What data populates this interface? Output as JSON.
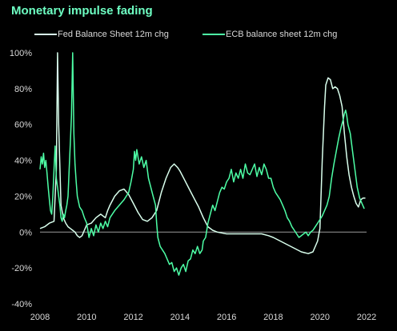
{
  "title": "Monetary impulse fading",
  "colors": {
    "background": "#000000",
    "title": "#6effc3",
    "fed": "#d9ffed",
    "ecb": "#4dffa6",
    "axis": "#9a9a9a",
    "text": "#d9d9d9"
  },
  "chart_data": {
    "type": "line",
    "title": "Monetary impulse fading",
    "xlabel": "",
    "ylabel": "",
    "xlim": [
      2008,
      2022
    ],
    "ylim": [
      -40,
      100
    ],
    "x_ticks": [
      2008,
      2010,
      2012,
      2014,
      2016,
      2018,
      2020,
      2022
    ],
    "x_tick_labels": [
      "2008",
      "2010",
      "2012",
      "2014",
      "2016",
      "2018",
      "2020",
      "2022"
    ],
    "y_ticks": [
      -40,
      -20,
      0,
      20,
      40,
      60,
      80,
      100
    ],
    "y_tick_labels": [
      "-40%",
      "-20%",
      "0%",
      "20%",
      "40%",
      "60%",
      "80%",
      "100%"
    ],
    "zero_line": true,
    "grid": false,
    "legend_position": "top",
    "series": [
      {
        "name": "Fed Balance Sheet 12m chg",
        "color": "#d9ffed",
        "points": [
          [
            2008.0,
            2
          ],
          [
            2008.2,
            3
          ],
          [
            2008.4,
            5
          ],
          [
            2008.6,
            6
          ],
          [
            2008.7,
            35
          ],
          [
            2008.75,
            100
          ],
          [
            2008.8,
            60
          ],
          [
            2008.9,
            15
          ],
          [
            2009.0,
            8
          ],
          [
            2009.1,
            5
          ],
          [
            2009.2,
            3
          ],
          [
            2009.3,
            2
          ],
          [
            2009.4,
            1
          ],
          [
            2009.5,
            0
          ],
          [
            2009.6,
            -2
          ],
          [
            2009.7,
            -3
          ],
          [
            2009.8,
            -2
          ],
          [
            2009.9,
            1
          ],
          [
            2010.0,
            4
          ],
          [
            2010.2,
            5
          ],
          [
            2010.4,
            8
          ],
          [
            2010.6,
            10
          ],
          [
            2010.8,
            8
          ],
          [
            2010.9,
            12
          ],
          [
            2011.0,
            15
          ],
          [
            2011.2,
            20
          ],
          [
            2011.4,
            23
          ],
          [
            2011.6,
            24
          ],
          [
            2011.8,
            21
          ],
          [
            2012.0,
            16
          ],
          [
            2012.2,
            11
          ],
          [
            2012.4,
            7
          ],
          [
            2012.6,
            6
          ],
          [
            2012.8,
            8
          ],
          [
            2013.0,
            12
          ],
          [
            2013.2,
            22
          ],
          [
            2013.4,
            30
          ],
          [
            2013.6,
            36
          ],
          [
            2013.75,
            38
          ],
          [
            2013.9,
            36
          ],
          [
            2014.0,
            34
          ],
          [
            2014.2,
            29
          ],
          [
            2014.4,
            24
          ],
          [
            2014.6,
            19
          ],
          [
            2014.8,
            14
          ],
          [
            2015.0,
            8
          ],
          [
            2015.2,
            3
          ],
          [
            2015.4,
            1
          ],
          [
            2015.6,
            0
          ],
          [
            2016.0,
            -1
          ],
          [
            2016.5,
            -1
          ],
          [
            2017.0,
            -1
          ],
          [
            2017.5,
            -1
          ],
          [
            2017.8,
            -2
          ],
          [
            2018.0,
            -3
          ],
          [
            2018.3,
            -5
          ],
          [
            2018.6,
            -7
          ],
          [
            2018.9,
            -9
          ],
          [
            2019.2,
            -11
          ],
          [
            2019.5,
            -12
          ],
          [
            2019.7,
            -11
          ],
          [
            2019.9,
            -5
          ],
          [
            2020.0,
            2
          ],
          [
            2020.1,
            40
          ],
          [
            2020.2,
            70
          ],
          [
            2020.25,
            82
          ],
          [
            2020.35,
            86
          ],
          [
            2020.45,
            85
          ],
          [
            2020.55,
            80
          ],
          [
            2020.65,
            81
          ],
          [
            2020.75,
            80
          ],
          [
            2020.85,
            76
          ],
          [
            2020.95,
            70
          ],
          [
            2021.05,
            55
          ],
          [
            2021.15,
            42
          ],
          [
            2021.25,
            32
          ],
          [
            2021.35,
            25
          ],
          [
            2021.45,
            20
          ],
          [
            2021.55,
            16
          ],
          [
            2021.65,
            14
          ],
          [
            2021.75,
            18
          ],
          [
            2021.85,
            19
          ],
          [
            2021.95,
            19
          ]
        ]
      },
      {
        "name": "ECB balance sheet 12m chg",
        "color": "#4dffa6",
        "points": [
          [
            2008.0,
            35
          ],
          [
            2008.05,
            42
          ],
          [
            2008.1,
            38
          ],
          [
            2008.15,
            44
          ],
          [
            2008.2,
            36
          ],
          [
            2008.25,
            40
          ],
          [
            2008.3,
            33
          ],
          [
            2008.35,
            25
          ],
          [
            2008.4,
            18
          ],
          [
            2008.45,
            12
          ],
          [
            2008.5,
            10
          ],
          [
            2008.55,
            20
          ],
          [
            2008.6,
            35
          ],
          [
            2008.65,
            48
          ],
          [
            2008.7,
            30
          ],
          [
            2008.75,
            25
          ],
          [
            2008.8,
            20
          ],
          [
            2008.85,
            15
          ],
          [
            2008.9,
            8
          ],
          [
            2008.95,
            6
          ],
          [
            2009.0,
            10
          ],
          [
            2009.05,
            8
          ],
          [
            2009.1,
            12
          ],
          [
            2009.15,
            15
          ],
          [
            2009.2,
            20
          ],
          [
            2009.25,
            35
          ],
          [
            2009.3,
            50
          ],
          [
            2009.35,
            65
          ],
          [
            2009.4,
            100
          ],
          [
            2009.45,
            55
          ],
          [
            2009.5,
            38
          ],
          [
            2009.55,
            28
          ],
          [
            2009.6,
            20
          ],
          [
            2009.7,
            14
          ],
          [
            2009.8,
            12
          ],
          [
            2009.9,
            8
          ],
          [
            2010.0,
            5
          ],
          [
            2010.1,
            -3
          ],
          [
            2010.2,
            2
          ],
          [
            2010.3,
            -2
          ],
          [
            2010.4,
            4
          ],
          [
            2010.5,
            0
          ],
          [
            2010.6,
            5
          ],
          [
            2010.7,
            2
          ],
          [
            2010.8,
            6
          ],
          [
            2010.9,
            3
          ],
          [
            2011.0,
            8
          ],
          [
            2011.2,
            12
          ],
          [
            2011.4,
            15
          ],
          [
            2011.6,
            18
          ],
          [
            2011.8,
            22
          ],
          [
            2011.9,
            28
          ],
          [
            2012.0,
            35
          ],
          [
            2012.05,
            45
          ],
          [
            2012.1,
            40
          ],
          [
            2012.15,
            46
          ],
          [
            2012.25,
            38
          ],
          [
            2012.35,
            42
          ],
          [
            2012.45,
            36
          ],
          [
            2012.55,
            40
          ],
          [
            2012.65,
            30
          ],
          [
            2012.75,
            25
          ],
          [
            2012.85,
            20
          ],
          [
            2012.95,
            15
          ],
          [
            2013.0,
            5
          ],
          [
            2013.05,
            -3
          ],
          [
            2013.15,
            -8
          ],
          [
            2013.25,
            -10
          ],
          [
            2013.35,
            -12
          ],
          [
            2013.45,
            -15
          ],
          [
            2013.55,
            -18
          ],
          [
            2013.65,
            -17
          ],
          [
            2013.75,
            -22
          ],
          [
            2013.85,
            -20
          ],
          [
            2013.95,
            -24
          ],
          [
            2014.05,
            -20
          ],
          [
            2014.15,
            -18
          ],
          [
            2014.25,
            -22
          ],
          [
            2014.35,
            -16
          ],
          [
            2014.45,
            -15
          ],
          [
            2014.55,
            -10
          ],
          [
            2014.65,
            -12
          ],
          [
            2014.75,
            -8
          ],
          [
            2014.85,
            -12
          ],
          [
            2014.95,
            -10
          ],
          [
            2015.0,
            -5
          ],
          [
            2015.1,
            -3
          ],
          [
            2015.2,
            5
          ],
          [
            2015.3,
            10
          ],
          [
            2015.4,
            15
          ],
          [
            2015.5,
            12
          ],
          [
            2015.6,
            17
          ],
          [
            2015.7,
            22
          ],
          [
            2015.8,
            25
          ],
          [
            2015.9,
            24
          ],
          [
            2016.0,
            28
          ],
          [
            2016.1,
            30
          ],
          [
            2016.2,
            35
          ],
          [
            2016.3,
            28
          ],
          [
            2016.4,
            33
          ],
          [
            2016.5,
            30
          ],
          [
            2016.6,
            35
          ],
          [
            2016.7,
            30
          ],
          [
            2016.8,
            38
          ],
          [
            2016.9,
            33
          ],
          [
            2017.0,
            32
          ],
          [
            2017.1,
            35
          ],
          [
            2017.2,
            38
          ],
          [
            2017.3,
            31
          ],
          [
            2017.4,
            36
          ],
          [
            2017.5,
            32
          ],
          [
            2017.6,
            38
          ],
          [
            2017.7,
            35
          ],
          [
            2017.8,
            30
          ],
          [
            2017.9,
            30
          ],
          [
            2018.0,
            25
          ],
          [
            2018.1,
            22
          ],
          [
            2018.2,
            20
          ],
          [
            2018.3,
            18
          ],
          [
            2018.4,
            15
          ],
          [
            2018.5,
            12
          ],
          [
            2018.6,
            8
          ],
          [
            2018.7,
            6
          ],
          [
            2018.8,
            3
          ],
          [
            2018.9,
            1
          ],
          [
            2019.0,
            -1
          ],
          [
            2019.1,
            -3
          ],
          [
            2019.2,
            -2
          ],
          [
            2019.3,
            -1
          ],
          [
            2019.4,
            0
          ],
          [
            2019.5,
            -2
          ],
          [
            2019.6,
            0
          ],
          [
            2019.7,
            1
          ],
          [
            2019.8,
            3
          ],
          [
            2019.9,
            5
          ],
          [
            2020.0,
            7
          ],
          [
            2020.1,
            9
          ],
          [
            2020.2,
            12
          ],
          [
            2020.3,
            15
          ],
          [
            2020.4,
            20
          ],
          [
            2020.5,
            30
          ],
          [
            2020.6,
            38
          ],
          [
            2020.7,
            45
          ],
          [
            2020.8,
            52
          ],
          [
            2020.9,
            58
          ],
          [
            2021.0,
            63
          ],
          [
            2021.05,
            66
          ],
          [
            2021.1,
            68
          ],
          [
            2021.15,
            65
          ],
          [
            2021.2,
            60
          ],
          [
            2021.3,
            55
          ],
          [
            2021.4,
            45
          ],
          [
            2021.5,
            35
          ],
          [
            2021.6,
            25
          ],
          [
            2021.7,
            19
          ],
          [
            2021.8,
            16
          ],
          [
            2021.9,
            13
          ]
        ]
      }
    ]
  }
}
